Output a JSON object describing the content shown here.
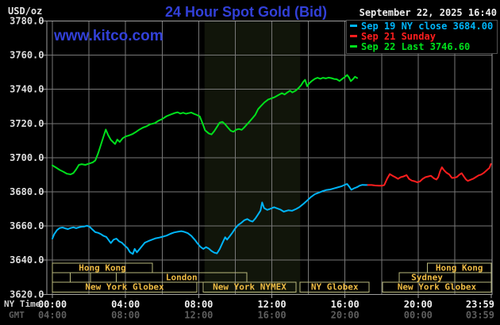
{
  "header": {
    "unit_label": "USD/oz",
    "title": "24 Hour Spot Gold (Bid)",
    "datetime": "September 22, 2025 16:40",
    "watermark": "www.kitco.com"
  },
  "legend": [
    {
      "label": "Sep 19 NY close 3684.00",
      "color": "#00b4f8"
    },
    {
      "label": "Sep 21 Sunday",
      "color": "#ff1e1e"
    },
    {
      "label": "Sep 22 Last 3746.60",
      "color": "#00e01c"
    }
  ],
  "axes": {
    "ny_label": "NY Time",
    "gmt_label": "GMT",
    "x_ticks": [
      {
        "h": 0,
        "ny": "00:00",
        "gmt": "04:00"
      },
      {
        "h": 4,
        "ny": "04:00",
        "gmt": "08:00"
      },
      {
        "h": 8,
        "ny": "08:00",
        "gmt": "12:00"
      },
      {
        "h": 12,
        "ny": "12:00",
        "gmt": "16:00"
      },
      {
        "h": 16,
        "ny": "16:00",
        "gmt": "20:00"
      },
      {
        "h": 20,
        "ny": "20:00",
        "gmt": "00:00"
      },
      {
        "h": 24,
        "ny": "23:59",
        "gmt": "03:59",
        "align": "right"
      }
    ],
    "y_ticks": [
      {
        "v": 3620,
        "label": "3620.0"
      },
      {
        "v": 3640,
        "label": "3640.0"
      },
      {
        "v": 3660,
        "label": "3660.0"
      },
      {
        "v": 3680,
        "label": "3680.0"
      },
      {
        "v": 3700,
        "label": "3700.0"
      },
      {
        "v": 3720,
        "label": "3720.0"
      },
      {
        "v": 3740,
        "label": "3740.0"
      },
      {
        "v": 3760,
        "label": "3760.0"
      },
      {
        "v": 3780,
        "label": "3780.0"
      }
    ]
  },
  "sessions": {
    "border_color": "#b9b97c",
    "text_color": "#eebb44",
    "rows": [
      {
        "boxes": [
          {
            "label": "Hong Kong",
            "h0": 0,
            "h1": 5.47
          },
          {
            "label": "Hong Kong",
            "h0": 20.5,
            "h1": 24
          }
        ]
      },
      {
        "boxes": [
          {
            "label": "",
            "h0": 0,
            "h1": 0.97
          },
          {
            "label": "",
            "h0": 0.97,
            "h1": 2.08
          },
          {
            "label": "",
            "h0": 2.08,
            "h1": 3.5
          },
          {
            "label": "London",
            "h0": 3.5,
            "h1": 10.63
          },
          {
            "label": "Sydney",
            "h0": 18.97,
            "h1": 22.0
          },
          {
            "label": "",
            "h0": 22.0,
            "h1": 24
          }
        ]
      },
      {
        "boxes": [
          {
            "label": "New York Globex",
            "h0": 0,
            "h1": 7.9
          },
          {
            "label": "New York NYMEX",
            "h0": 8.25,
            "h1": 13.32
          },
          {
            "label": "NY Globex",
            "h0": 13.55,
            "h1": 17.32
          },
          {
            "label": "New York Globex",
            "h0": 18.05,
            "h1": 24
          }
        ]
      }
    ]
  },
  "chart_data": {
    "type": "line",
    "title": "24 Hour Spot Gold (Bid)",
    "xlabel": "NY Time (hours 0-24)",
    "ylabel": "USD/oz",
    "ylim": [
      3620,
      3780
    ],
    "xlim_hours": [
      0,
      24
    ],
    "grid": {
      "x_step_hours": 2,
      "y_step": 20,
      "color": "#777777"
    },
    "nymex_band_hours": [
      8.32,
      13.55
    ],
    "band_color": "#11150a",
    "series": [
      {
        "name": "Sep 22 Last 3746.60",
        "color": "#00e01c",
        "points": [
          [
            0,
            3695.5
          ],
          [
            0.2,
            3694.2
          ],
          [
            0.4,
            3692.8
          ],
          [
            0.6,
            3691.8
          ],
          [
            0.8,
            3690.6
          ],
          [
            1.0,
            3690.2
          ],
          [
            1.15,
            3691
          ],
          [
            1.3,
            3693.2
          ],
          [
            1.45,
            3695.8
          ],
          [
            1.6,
            3696.2
          ],
          [
            1.8,
            3695.8
          ],
          [
            2.0,
            3696.5
          ],
          [
            2.2,
            3697.2
          ],
          [
            2.35,
            3698.4
          ],
          [
            2.5,
            3702.5
          ],
          [
            2.65,
            3707.5
          ],
          [
            2.8,
            3712.5
          ],
          [
            2.92,
            3716.5
          ],
          [
            3.05,
            3713.2
          ],
          [
            3.2,
            3710.4
          ],
          [
            3.43,
            3708
          ],
          [
            3.55,
            3710.6
          ],
          [
            3.68,
            3709.2
          ],
          [
            3.85,
            3711.4
          ],
          [
            4.0,
            3712.4
          ],
          [
            4.18,
            3713
          ],
          [
            4.37,
            3713.8
          ],
          [
            4.55,
            3714.9
          ],
          [
            4.75,
            3716.4
          ],
          [
            4.95,
            3717.6
          ],
          [
            5.15,
            3718.4
          ],
          [
            5.35,
            3719.6
          ],
          [
            5.6,
            3720.2
          ],
          [
            5.8,
            3721.6
          ],
          [
            6.0,
            3722.6
          ],
          [
            6.25,
            3724.3
          ],
          [
            6.5,
            3725.4
          ],
          [
            6.7,
            3726.2
          ],
          [
            6.85,
            3726.6
          ],
          [
            7.0,
            3725.8
          ],
          [
            7.15,
            3726.3
          ],
          [
            7.3,
            3725.7
          ],
          [
            7.45,
            3726.1
          ],
          [
            7.6,
            3726.4
          ],
          [
            7.75,
            3725.6
          ],
          [
            7.9,
            3725
          ],
          [
            8.06,
            3724.2
          ],
          [
            8.2,
            3720.5
          ],
          [
            8.35,
            3716
          ],
          [
            8.55,
            3714.2
          ],
          [
            8.7,
            3713.6
          ],
          [
            8.85,
            3715.5
          ],
          [
            9.0,
            3718
          ],
          [
            9.15,
            3720.5
          ],
          [
            9.3,
            3721
          ],
          [
            9.45,
            3719.5
          ],
          [
            9.6,
            3717.6
          ],
          [
            9.75,
            3715.8
          ],
          [
            9.9,
            3715.2
          ],
          [
            10.05,
            3716.4
          ],
          [
            10.2,
            3716.8
          ],
          [
            10.35,
            3716.3
          ],
          [
            10.5,
            3717.8
          ],
          [
            10.65,
            3719.6
          ],
          [
            10.8,
            3721.4
          ],
          [
            10.95,
            3723.2
          ],
          [
            11.1,
            3725.2
          ],
          [
            11.25,
            3728.4
          ],
          [
            11.4,
            3730.2
          ],
          [
            11.6,
            3732.4
          ],
          [
            11.8,
            3734
          ],
          [
            12.0,
            3734.8
          ],
          [
            12.15,
            3735.4
          ],
          [
            12.35,
            3736.6
          ],
          [
            12.55,
            3737.8
          ],
          [
            12.7,
            3737
          ],
          [
            12.85,
            3738.2
          ],
          [
            13.0,
            3739.2
          ],
          [
            13.12,
            3738.2
          ],
          [
            13.3,
            3739.2
          ],
          [
            13.45,
            3740.6
          ],
          [
            13.6,
            3742.4
          ],
          [
            13.72,
            3744.4
          ],
          [
            13.82,
            3745.6
          ],
          [
            13.93,
            3741.8
          ],
          [
            14.05,
            3743.6
          ],
          [
            14.2,
            3745
          ],
          [
            14.35,
            3746.2
          ],
          [
            14.5,
            3746.8
          ],
          [
            14.65,
            3746.2
          ],
          [
            14.8,
            3746.8
          ],
          [
            14.95,
            3746.4
          ],
          [
            15.1,
            3746.9
          ],
          [
            15.25,
            3746.6
          ],
          [
            15.4,
            3746.1
          ],
          [
            15.55,
            3745.9
          ],
          [
            15.7,
            3744.9
          ],
          [
            15.85,
            3746.1
          ],
          [
            16.0,
            3747.3
          ],
          [
            16.12,
            3748.4
          ],
          [
            16.22,
            3747
          ],
          [
            16.32,
            3744.8
          ],
          [
            16.45,
            3746.1
          ],
          [
            16.55,
            3747.4
          ],
          [
            16.67,
            3746.6
          ]
        ]
      },
      {
        "name": "Sep 19 NY close 3684.00",
        "color": "#00b4f8",
        "points": [
          [
            0,
            3652.6
          ],
          [
            0.1,
            3655.2
          ],
          [
            0.25,
            3657.6
          ],
          [
            0.4,
            3658.8
          ],
          [
            0.55,
            3659.1
          ],
          [
            0.7,
            3658.6
          ],
          [
            0.85,
            3658.2
          ],
          [
            1.0,
            3658.8
          ],
          [
            1.15,
            3659.2
          ],
          [
            1.3,
            3658.7
          ],
          [
            1.45,
            3659.2
          ],
          [
            1.6,
            3659.6
          ],
          [
            1.75,
            3659.7
          ],
          [
            1.9,
            3660.2
          ],
          [
            2.05,
            3659.4
          ],
          [
            2.2,
            3657.8
          ],
          [
            2.35,
            3656.4
          ],
          [
            2.5,
            3656
          ],
          [
            2.65,
            3655.2
          ],
          [
            2.8,
            3654.2
          ],
          [
            2.95,
            3653.6
          ],
          [
            3.1,
            3651.4
          ],
          [
            3.2,
            3650
          ],
          [
            3.35,
            3652
          ],
          [
            3.5,
            3652.6
          ],
          [
            3.65,
            3651
          ],
          [
            3.8,
            3650.2
          ],
          [
            3.95,
            3648.6
          ],
          [
            4.1,
            3647.2
          ],
          [
            4.25,
            3644.6
          ],
          [
            4.4,
            3643.6
          ],
          [
            4.5,
            3646.6
          ],
          [
            4.62,
            3644.6
          ],
          [
            4.75,
            3646.2
          ],
          [
            4.9,
            3648.2
          ],
          [
            5.05,
            3650.2
          ],
          [
            5.25,
            3651.2
          ],
          [
            5.45,
            3652
          ],
          [
            5.65,
            3652.8
          ],
          [
            5.85,
            3653.2
          ],
          [
            6.05,
            3653.8
          ],
          [
            6.25,
            3654.4
          ],
          [
            6.45,
            3655.4
          ],
          [
            6.65,
            3656.2
          ],
          [
            6.85,
            3656.6
          ],
          [
            7.05,
            3657
          ],
          [
            7.2,
            3656.6
          ],
          [
            7.4,
            3655.8
          ],
          [
            7.6,
            3654.2
          ],
          [
            7.8,
            3651.8
          ],
          [
            7.95,
            3649.6
          ],
          [
            8.1,
            3647.8
          ],
          [
            8.25,
            3646.6
          ],
          [
            8.4,
            3647.6
          ],
          [
            8.55,
            3646.8
          ],
          [
            8.7,
            3645.4
          ],
          [
            8.85,
            3644.4
          ],
          [
            9.0,
            3644
          ],
          [
            9.15,
            3646.5
          ],
          [
            9.3,
            3650
          ],
          [
            9.45,
            3653.4
          ],
          [
            9.55,
            3652
          ],
          [
            9.7,
            3654
          ],
          [
            9.85,
            3656.2
          ],
          [
            10.0,
            3658.6
          ],
          [
            10.16,
            3660.6
          ],
          [
            10.35,
            3662
          ],
          [
            10.5,
            3663.4
          ],
          [
            10.66,
            3664.1
          ],
          [
            10.8,
            3663.1
          ],
          [
            10.95,
            3662.6
          ],
          [
            11.1,
            3664.4
          ],
          [
            11.25,
            3666.8
          ],
          [
            11.38,
            3669
          ],
          [
            11.47,
            3673.8
          ],
          [
            11.58,
            3670.5
          ],
          [
            11.75,
            3669.4
          ],
          [
            11.97,
            3670.3
          ],
          [
            12.12,
            3671
          ],
          [
            12.27,
            3670.4
          ],
          [
            12.47,
            3669.6
          ],
          [
            12.65,
            3668.4
          ],
          [
            12.9,
            3669.2
          ],
          [
            13.1,
            3668.9
          ],
          [
            13.34,
            3670
          ],
          [
            13.5,
            3671
          ],
          [
            13.7,
            3672.7
          ],
          [
            13.9,
            3674.6
          ],
          [
            14.13,
            3676.9
          ],
          [
            14.35,
            3678.6
          ],
          [
            14.64,
            3679.8
          ],
          [
            14.8,
            3680.5
          ],
          [
            15.0,
            3681.1
          ],
          [
            15.2,
            3681.4
          ],
          [
            15.4,
            3682
          ],
          [
            15.6,
            3682.6
          ],
          [
            15.8,
            3683.2
          ],
          [
            16.0,
            3684.2
          ],
          [
            16.12,
            3684.6
          ],
          [
            16.25,
            3682.8
          ],
          [
            16.35,
            3681.2
          ],
          [
            16.5,
            3682.1
          ],
          [
            16.65,
            3682.7
          ],
          [
            16.8,
            3683.6
          ],
          [
            16.95,
            3684.1
          ],
          [
            17.1,
            3684
          ],
          [
            17.25,
            3684
          ]
        ]
      },
      {
        "name": "Sep 21 Sunday",
        "color": "#ff1e1e",
        "points": [
          [
            17.25,
            3684
          ],
          [
            17.45,
            3684
          ],
          [
            17.65,
            3683.7
          ],
          [
            17.85,
            3683.6
          ],
          [
            18.05,
            3683.6
          ],
          [
            18.15,
            3684
          ],
          [
            18.3,
            3687.6
          ],
          [
            18.45,
            3690.4
          ],
          [
            18.6,
            3689.4
          ],
          [
            18.75,
            3688.6
          ],
          [
            18.9,
            3687.6
          ],
          [
            19.05,
            3688.6
          ],
          [
            19.2,
            3689
          ],
          [
            19.37,
            3689.8
          ],
          [
            19.5,
            3687.6
          ],
          [
            19.65,
            3686.6
          ],
          [
            19.8,
            3686.2
          ],
          [
            19.95,
            3685.6
          ],
          [
            20.1,
            3686.1
          ],
          [
            20.25,
            3687.6
          ],
          [
            20.4,
            3688.6
          ],
          [
            20.55,
            3689
          ],
          [
            20.7,
            3689.4
          ],
          [
            20.85,
            3688
          ],
          [
            21.0,
            3687.2
          ],
          [
            21.1,
            3688.6
          ],
          [
            21.2,
            3692
          ],
          [
            21.3,
            3694.4
          ],
          [
            21.42,
            3692.6
          ],
          [
            21.55,
            3691.2
          ],
          [
            21.7,
            3690.2
          ],
          [
            21.85,
            3688.1
          ],
          [
            22.0,
            3688.3
          ],
          [
            22.12,
            3688.7
          ],
          [
            22.25,
            3690
          ],
          [
            22.38,
            3690.9
          ],
          [
            22.5,
            3689
          ],
          [
            22.62,
            3687.2
          ],
          [
            22.72,
            3686.4
          ],
          [
            22.85,
            3687
          ],
          [
            23.0,
            3687.6
          ],
          [
            23.15,
            3688.6
          ],
          [
            23.3,
            3689.6
          ],
          [
            23.45,
            3690.1
          ],
          [
            23.6,
            3691.2
          ],
          [
            23.75,
            3692.6
          ],
          [
            23.9,
            3694
          ],
          [
            23.98,
            3696.3
          ]
        ]
      }
    ]
  }
}
